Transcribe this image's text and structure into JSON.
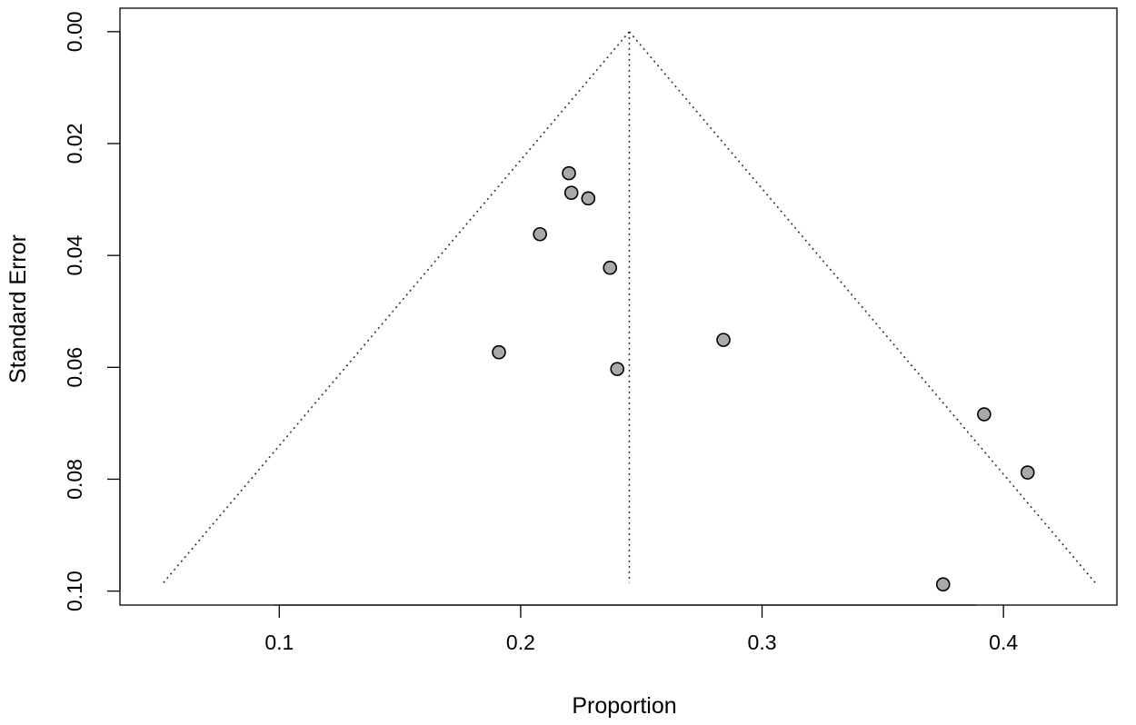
{
  "chart_data": {
    "type": "scatter",
    "subtype": "funnel-plot",
    "xlabel": "Proportion",
    "ylabel": "Standard Error",
    "xlim": [
      0.034,
      0.447
    ],
    "ylim": [
      0.1025,
      -0.0042
    ],
    "y_reversed": true,
    "xticks": [
      0.1,
      0.2,
      0.3,
      0.4
    ],
    "xtick_labels": [
      "0.1",
      "0.2",
      "0.3",
      "0.4"
    ],
    "yticks": [
      0.0,
      0.02,
      0.04,
      0.06,
      0.08,
      0.1
    ],
    "ytick_labels": [
      "0.00",
      "0.02",
      "0.04",
      "0.06",
      "0.08",
      "0.10"
    ],
    "pooled_estimate": 0.245,
    "funnel": {
      "apex": {
        "x": 0.245,
        "se": 0.0
      },
      "left_base": {
        "x": 0.052,
        "se": 0.0985
      },
      "right_base": {
        "x": 0.438,
        "se": 0.0985
      }
    },
    "points": [
      {
        "x": 0.22,
        "se": 0.0253
      },
      {
        "x": 0.221,
        "se": 0.0288
      },
      {
        "x": 0.228,
        "se": 0.0298
      },
      {
        "x": 0.208,
        "se": 0.0362
      },
      {
        "x": 0.237,
        "se": 0.0422
      },
      {
        "x": 0.191,
        "se": 0.0573
      },
      {
        "x": 0.24,
        "se": 0.0603
      },
      {
        "x": 0.284,
        "se": 0.0551
      },
      {
        "x": 0.392,
        "se": 0.0684
      },
      {
        "x": 0.41,
        "se": 0.0788
      },
      {
        "x": 0.375,
        "se": 0.0988
      }
    ],
    "point_color": "#a9a9a9",
    "grid": false,
    "legend": "none"
  }
}
